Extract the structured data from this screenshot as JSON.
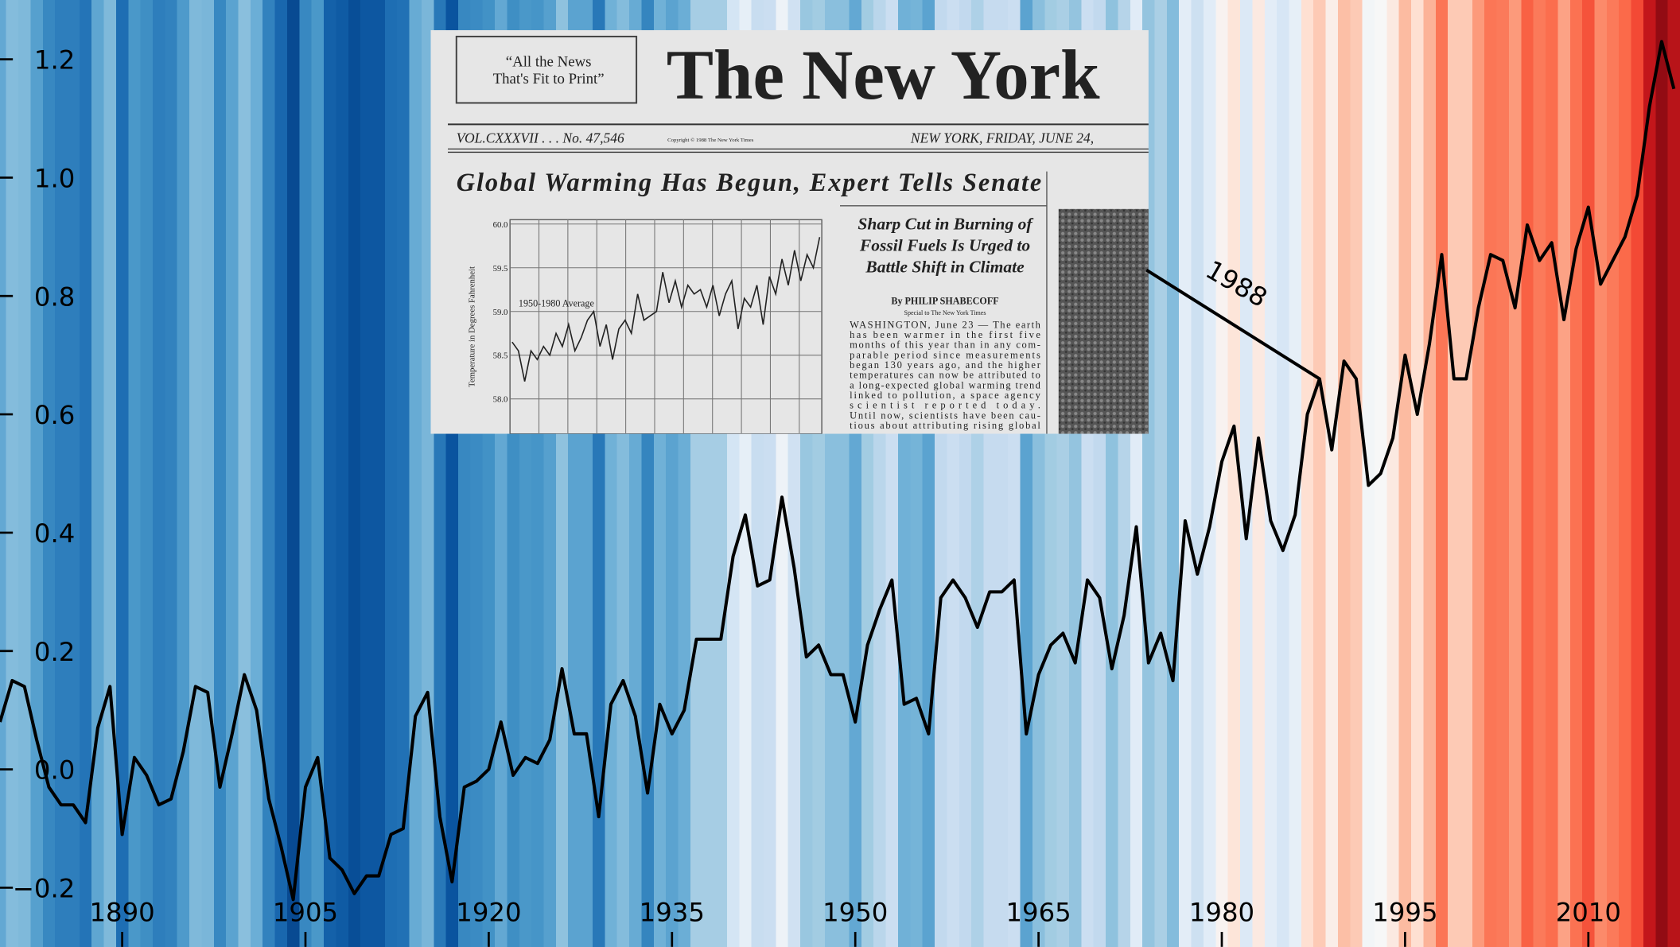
{
  "chart_data": {
    "type": "line",
    "x": [
      1880,
      1881,
      1882,
      1883,
      1884,
      1885,
      1886,
      1887,
      1888,
      1889,
      1890,
      1891,
      1892,
      1893,
      1894,
      1895,
      1896,
      1897,
      1898,
      1899,
      1900,
      1901,
      1902,
      1903,
      1904,
      1905,
      1906,
      1907,
      1908,
      1909,
      1910,
      1911,
      1912,
      1913,
      1914,
      1915,
      1916,
      1917,
      1918,
      1919,
      1920,
      1921,
      1922,
      1923,
      1924,
      1925,
      1926,
      1927,
      1928,
      1929,
      1930,
      1931,
      1932,
      1933,
      1934,
      1935,
      1936,
      1937,
      1938,
      1939,
      1940,
      1941,
      1942,
      1943,
      1944,
      1945,
      1946,
      1947,
      1948,
      1949,
      1950,
      1951,
      1952,
      1953,
      1954,
      1955,
      1956,
      1957,
      1958,
      1959,
      1960,
      1961,
      1962,
      1963,
      1964,
      1965,
      1966,
      1967,
      1968,
      1969,
      1970,
      1971,
      1972,
      1973,
      1974,
      1975,
      1976,
      1977,
      1978,
      1979,
      1980,
      1981,
      1982,
      1983,
      1984,
      1985,
      1986,
      1987,
      1988,
      1989,
      1990,
      1991,
      1992,
      1993,
      1994,
      1995,
      1996,
      1997,
      1998,
      1999,
      2000,
      2001,
      2002,
      2003,
      2004,
      2005,
      2006,
      2007,
      2008,
      2009,
      2010,
      2011,
      2012,
      2013,
      2014,
      2015,
      2016,
      2017
    ],
    "series": [
      {
        "color": "#000000",
        "values": [
          0.08,
          0.15,
          0.14,
          0.05,
          -0.03,
          -0.06,
          -0.06,
          -0.09,
          0.07,
          0.14,
          -0.11,
          0.02,
          -0.01,
          -0.06,
          -0.05,
          0.03,
          0.14,
          0.13,
          -0.03,
          0.06,
          0.16,
          0.1,
          -0.05,
          -0.13,
          -0.22,
          -0.03,
          0.02,
          -0.15,
          -0.17,
          -0.21,
          -0.18,
          -0.18,
          -0.11,
          -0.1,
          0.09,
          0.13,
          -0.08,
          -0.19,
          -0.03,
          -0.02,
          0.0,
          0.08,
          -0.01,
          0.02,
          0.01,
          0.05,
          0.17,
          0.06,
          0.06,
          -0.08,
          0.11,
          0.15,
          0.09,
          -0.04,
          0.11,
          0.06,
          0.1,
          0.22,
          0.22,
          0.22,
          0.36,
          0.43,
          0.31,
          0.32,
          0.46,
          0.34,
          0.19,
          0.21,
          0.16,
          0.16,
          0.08,
          0.21,
          0.27,
          0.32,
          0.11,
          0.12,
          0.06,
          0.29,
          0.32,
          0.29,
          0.24,
          0.3,
          0.3,
          0.32,
          0.06,
          0.16,
          0.21,
          0.23,
          0.18,
          0.32,
          0.29,
          0.17,
          0.26,
          0.41,
          0.18,
          0.23,
          0.15,
          0.42,
          0.33,
          0.41,
          0.52,
          0.58,
          0.39,
          0.56,
          0.42,
          0.37,
          0.43,
          0.6,
          0.66,
          0.54,
          0.69,
          0.66,
          0.48,
          0.5,
          0.56,
          0.7,
          0.6,
          0.72,
          0.87,
          0.66,
          0.66,
          0.78,
          0.87,
          0.86,
          0.78,
          0.92,
          0.86,
          0.89,
          0.76,
          0.88,
          0.95,
          0.82,
          0.86,
          0.9,
          0.97,
          1.12,
          1.23,
          1.15
        ]
      }
    ],
    "xlim": [
      1880,
      2017.5
    ],
    "ylim": [
      -0.3,
      1.3
    ],
    "xticks": [
      1890,
      1905,
      1920,
      1935,
      1950,
      1965,
      1980,
      1995,
      2010
    ],
    "yticks": [
      {
        "value": -0.2,
        "label": "−0.2"
      },
      {
        "value": 0,
        "label": "0.0"
      },
      0.2,
      0.4,
      0.6,
      0.8,
      {
        "value": 1,
        "label": "1.0"
      },
      1.2
    ],
    "stripes": true,
    "stripe_colors": [
      "#08306b",
      "#08519c",
      "#2171b5",
      "#4292c6",
      "#6baed6",
      "#9ecae1",
      "#c6dbef",
      "#deebf7",
      "#f7f7f7",
      "#fee0d2",
      "#fcbba1",
      "#fc9272",
      "#fb6a4a",
      "#ef3b2c",
      "#cb181d",
      "#a50f15",
      "#67000d"
    ],
    "annotation": {
      "text": "1988",
      "x": 1988
    }
  },
  "newspaper": {
    "motto": [
      "“All the News",
      "That's Fit to Print”"
    ],
    "masthead": "The New York",
    "volume": "VOL.CXXXVII . . . No. 47,546",
    "copyright": "Copyright © 1988 The New York Times",
    "dateline": "NEW YORK, FRIDAY, JUNE 24,",
    "headline": "Global Warming Has Begun, Expert Tells Senate",
    "subhead": [
      "Sharp Cut in Burning of",
      "Fossil Fuels Is Urged to",
      "Battle Shift in Climate"
    ],
    "byline": "By PHILIP SHABECOFF",
    "special": "Special to The New York Times",
    "body": [
      "WASHINGTON, June 23 — The earth",
      "has been warmer in the first five",
      "months of this year than in any com-",
      "parable period since measurements",
      "began 130 years ago, and the higher",
      "temperatures can now be attributed to",
      "a long-expected global warming trend",
      "linked to pollution, a space agency",
      "scientist reported today.",
      "Until now, scientists have been cau-",
      "tious about attributing rising global"
    ],
    "chart": {
      "ylabel": "Temperature in Degrees Fahrenheit",
      "annotation": "1950-1980 Average",
      "ylim": [
        57.6,
        60.05
      ],
      "yticks": [
        {
          "value": 60,
          "label": "60.0"
        },
        {
          "value": 59.5,
          "label": "59.5"
        },
        {
          "value": 59,
          "label": "59.0"
        },
        {
          "value": 58.5,
          "label": "58.5"
        },
        {
          "value": 58,
          "label": "58.0"
        }
      ],
      "values": [
        58.65,
        58.55,
        58.2,
        58.55,
        58.45,
        58.6,
        58.5,
        58.75,
        58.6,
        58.85,
        58.55,
        58.7,
        58.9,
        59.0,
        58.6,
        58.85,
        58.45,
        58.8,
        58.9,
        58.75,
        59.2,
        58.9,
        58.95,
        59.0,
        59.45,
        59.1,
        59.35,
        59.05,
        59.3,
        59.2,
        59.25,
        59.05,
        59.3,
        58.95,
        59.2,
        59.35,
        58.8,
        59.15,
        59.05,
        59.3,
        58.85,
        59.4,
        59.2,
        59.6,
        59.3,
        59.7,
        59.35,
        59.65,
        59.5,
        59.85
      ]
    }
  }
}
